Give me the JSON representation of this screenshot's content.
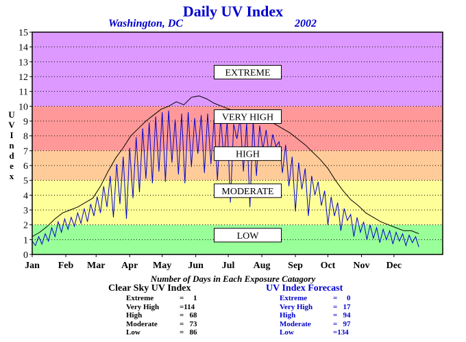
{
  "header": {
    "title": "Daily UV Index",
    "location": "Washington, DC",
    "year": "2002"
  },
  "ylabel_letters": [
    "U",
    "V",
    "",
    "I",
    "n",
    "d",
    "e",
    "x"
  ],
  "summary": {
    "title": "Number of Days in Each Exposure Catagory",
    "clear_sky": {
      "title": "Clear Sky UV Index",
      "rows": [
        {
          "label": "Extreme",
          "value": "=     1"
        },
        {
          "label": "Very High",
          "value": "=114"
        },
        {
          "label": "High",
          "value": "=   68"
        },
        {
          "label": "Moderate",
          "value": "=   73"
        },
        {
          "label": "Low",
          "value": "=   86"
        }
      ]
    },
    "forecast": {
      "title": "UV Index Forecast",
      "rows": [
        {
          "label": "Extreme",
          "value": "=     0"
        },
        {
          "label": "Very High",
          "value": "=   17"
        },
        {
          "label": "High",
          "value": "=   94"
        },
        {
          "label": "Moderate",
          "value": "=   97"
        },
        {
          "label": "Low",
          "value": "=134"
        }
      ]
    }
  },
  "chart_data": {
    "type": "line",
    "title": "Daily UV Index",
    "ylabel": "UV Index",
    "xlabel": "",
    "ylim": [
      0,
      15
    ],
    "xlim": [
      1,
      380
    ],
    "grid": true,
    "months": [
      {
        "label": "Jan",
        "day": 1
      },
      {
        "label": "Feb",
        "day": 32
      },
      {
        "label": "Mar",
        "day": 60
      },
      {
        "label": "Apr",
        "day": 91
      },
      {
        "label": "May",
        "day": 121
      },
      {
        "label": "Jun",
        "day": 152
      },
      {
        "label": "Jul",
        "day": 182
      },
      {
        "label": "Aug",
        "day": 213
      },
      {
        "label": "Sep",
        "day": 244
      },
      {
        "label": "Oct",
        "day": 274
      },
      {
        "label": "Nov",
        "day": 305
      },
      {
        "label": "Dec",
        "day": 335
      }
    ],
    "yticks": [
      0,
      1,
      2,
      3,
      4,
      5,
      6,
      7,
      8,
      9,
      10,
      11,
      12,
      13,
      14,
      15
    ],
    "bands": [
      {
        "label": "LOW",
        "from": 0,
        "to": 2,
        "color": "#99ff99",
        "label_at": 1.3
      },
      {
        "label": "MODERATE",
        "from": 2,
        "to": 5,
        "color": "#ffff99",
        "label_at": 4.3
      },
      {
        "label": "HIGH",
        "from": 5,
        "to": 7,
        "color": "#ffcc99",
        "label_at": 6.8
      },
      {
        "label": "VERY HIGH",
        "from": 7,
        "to": 10,
        "color": "#ff9999",
        "label_at": 9.3
      },
      {
        "label": "EXTREME",
        "from": 10,
        "to": 15,
        "color": "#dd99ff",
        "label_at": 12.3
      }
    ],
    "series": [
      {
        "name": "Clear Sky UV Index",
        "color": "#000000",
        "points": [
          [
            1,
            1.2
          ],
          [
            8,
            1.5
          ],
          [
            15,
            1.9
          ],
          [
            22,
            2.4
          ],
          [
            29,
            2.8
          ],
          [
            36,
            3.0
          ],
          [
            43,
            3.2
          ],
          [
            50,
            3.5
          ],
          [
            57,
            3.8
          ],
          [
            64,
            4.6
          ],
          [
            71,
            5.6
          ],
          [
            78,
            6.5
          ],
          [
            85,
            7.2
          ],
          [
            92,
            8.0
          ],
          [
            99,
            8.5
          ],
          [
            106,
            9.0
          ],
          [
            113,
            9.4
          ],
          [
            120,
            9.8
          ],
          [
            127,
            10.0
          ],
          [
            134,
            10.3
          ],
          [
            141,
            10.1
          ],
          [
            148,
            10.6
          ],
          [
            155,
            10.7
          ],
          [
            162,
            10.5
          ],
          [
            169,
            10.2
          ],
          [
            176,
            10.0
          ],
          [
            183,
            9.8
          ],
          [
            190,
            9.6
          ],
          [
            197,
            9.5
          ],
          [
            204,
            9.4
          ],
          [
            211,
            9.2
          ],
          [
            218,
            9.0
          ],
          [
            225,
            8.8
          ],
          [
            232,
            8.5
          ],
          [
            239,
            8.2
          ],
          [
            246,
            7.8
          ],
          [
            253,
            7.4
          ],
          [
            260,
            6.9
          ],
          [
            267,
            6.4
          ],
          [
            274,
            5.8
          ],
          [
            281,
            5.0
          ],
          [
            288,
            4.3
          ],
          [
            295,
            3.7
          ],
          [
            302,
            3.3
          ],
          [
            309,
            2.8
          ],
          [
            316,
            2.5
          ],
          [
            323,
            2.2
          ],
          [
            330,
            2.0
          ],
          [
            337,
            1.8
          ],
          [
            344,
            1.6
          ],
          [
            351,
            1.6
          ],
          [
            358,
            1.4
          ]
        ]
      },
      {
        "name": "UV Index Forecast",
        "color": "#0000cc",
        "points": [
          [
            1,
            0.9
          ],
          [
            4,
            0.6
          ],
          [
            7,
            1.2
          ],
          [
            10,
            0.7
          ],
          [
            13,
            1.4
          ],
          [
            16,
            0.9
          ],
          [
            19,
            1.8
          ],
          [
            22,
            1.2
          ],
          [
            25,
            2.2
          ],
          [
            28,
            1.5
          ],
          [
            31,
            2.4
          ],
          [
            34,
            1.7
          ],
          [
            37,
            2.5
          ],
          [
            40,
            1.9
          ],
          [
            43,
            2.8
          ],
          [
            46,
            2.1
          ],
          [
            49,
            3.1
          ],
          [
            52,
            2.2
          ],
          [
            55,
            3.4
          ],
          [
            58,
            2.6
          ],
          [
            61,
            3.9
          ],
          [
            64,
            2.8
          ],
          [
            67,
            4.6
          ],
          [
            70,
            3.2
          ],
          [
            73,
            5.3
          ],
          [
            76,
            2.5
          ],
          [
            79,
            6.1
          ],
          [
            82,
            3.4
          ],
          [
            85,
            6.6
          ],
          [
            88,
            2.4
          ],
          [
            91,
            7.2
          ],
          [
            94,
            3.8
          ],
          [
            97,
            7.9
          ],
          [
            100,
            4.2
          ],
          [
            103,
            8.5
          ],
          [
            106,
            5.1
          ],
          [
            109,
            8.9
          ],
          [
            112,
            4.8
          ],
          [
            115,
            9.3
          ],
          [
            118,
            5.6
          ],
          [
            121,
            9.6
          ],
          [
            124,
            4.9
          ],
          [
            127,
            9.7
          ],
          [
            130,
            6.2
          ],
          [
            133,
            9.1
          ],
          [
            136,
            5.4
          ],
          [
            139,
            9.5
          ],
          [
            142,
            4.8
          ],
          [
            145,
            9.6
          ],
          [
            148,
            5.9
          ],
          [
            151,
            9.2
          ],
          [
            154,
            6.8
          ],
          [
            157,
            9.4
          ],
          [
            160,
            5.5
          ],
          [
            163,
            9.5
          ],
          [
            166,
            6.1
          ],
          [
            169,
            9.2
          ],
          [
            172,
            5.0
          ],
          [
            175,
            9.3
          ],
          [
            178,
            6.4
          ],
          [
            181,
            9.0
          ],
          [
            184,
            3.5
          ],
          [
            187,
            8.8
          ],
          [
            190,
            7.8
          ],
          [
            193,
            9.2
          ],
          [
            196,
            5.6
          ],
          [
            199,
            8.9
          ],
          [
            202,
            3.2
          ],
          [
            205,
            9.1
          ],
          [
            208,
            5.3
          ],
          [
            211,
            8.7
          ],
          [
            214,
            7.1
          ],
          [
            217,
            8.4
          ],
          [
            220,
            6.5
          ],
          [
            223,
            8.1
          ],
          [
            226,
            7.3
          ],
          [
            229,
            7.6
          ],
          [
            232,
            5.5
          ],
          [
            235,
            7.4
          ],
          [
            238,
            4.6
          ],
          [
            241,
            6.6
          ],
          [
            244,
            2.9
          ],
          [
            247,
            6.2
          ],
          [
            250,
            4.4
          ],
          [
            253,
            5.8
          ],
          [
            256,
            2.6
          ],
          [
            259,
            5.3
          ],
          [
            262,
            4.0
          ],
          [
            265,
            4.9
          ],
          [
            268,
            3.3
          ],
          [
            271,
            4.3
          ],
          [
            274,
            2.0
          ],
          [
            277,
            3.9
          ],
          [
            280,
            2.6
          ],
          [
            283,
            3.5
          ],
          [
            286,
            1.6
          ],
          [
            289,
            3.1
          ],
          [
            292,
            2.3
          ],
          [
            295,
            2.7
          ],
          [
            298,
            1.2
          ],
          [
            301,
            2.5
          ],
          [
            304,
            1.5
          ],
          [
            307,
            2.2
          ],
          [
            310,
            1.0
          ],
          [
            313,
            2.0
          ],
          [
            316,
            1.1
          ],
          [
            319,
            1.8
          ],
          [
            322,
            0.8
          ],
          [
            325,
            1.7
          ],
          [
            328,
            1.0
          ],
          [
            331,
            1.6
          ],
          [
            334,
            0.7
          ],
          [
            337,
            1.5
          ],
          [
            340,
            0.9
          ],
          [
            343,
            1.4
          ],
          [
            346,
            0.6
          ],
          [
            349,
            1.3
          ],
          [
            352,
            0.8
          ],
          [
            355,
            1.2
          ],
          [
            358,
            0.5
          ]
        ]
      }
    ]
  }
}
